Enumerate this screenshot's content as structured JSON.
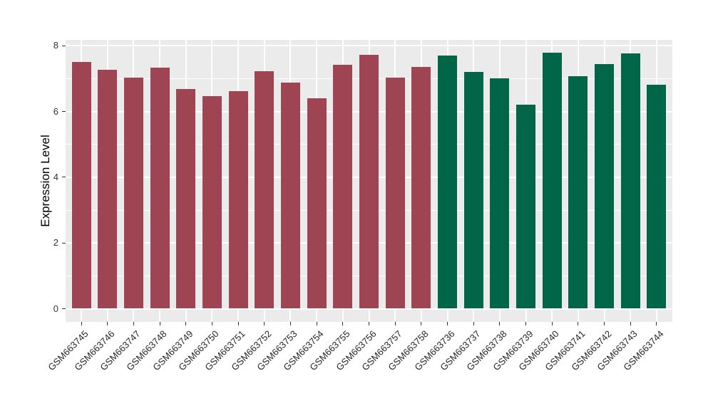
{
  "chart_data": {
    "type": "bar",
    "title": "",
    "xlabel": "",
    "ylabel": "Expression Level",
    "ylim": [
      0,
      8.18
    ],
    "yticks_major": [
      0,
      2,
      4,
      6,
      8
    ],
    "yticks_minor": [
      1,
      3,
      5,
      7
    ],
    "grid": "on",
    "legend": "none",
    "categories": [
      "GSM663745",
      "GSM663746",
      "GSM663747",
      "GSM663748",
      "GSM663749",
      "GSM663750",
      "GSM663751",
      "GSM663752",
      "GSM663753",
      "GSM663754",
      "GSM663755",
      "GSM663756",
      "GSM663757",
      "GSM663758",
      "GSM663736",
      "GSM663737",
      "GSM663738",
      "GSM663739",
      "GSM663740",
      "GSM663741",
      "GSM663742",
      "GSM663743",
      "GSM663744"
    ],
    "values": [
      7.5,
      7.26,
      7.03,
      7.34,
      6.68,
      6.47,
      6.61,
      7.22,
      6.88,
      6.4,
      7.42,
      7.73,
      7.03,
      7.35,
      7.7,
      7.2,
      7.01,
      6.2,
      7.78,
      7.07,
      7.44,
      7.77,
      6.81
    ],
    "groups": [
      "group1",
      "group1",
      "group1",
      "group1",
      "group1",
      "group1",
      "group1",
      "group1",
      "group1",
      "group1",
      "group1",
      "group1",
      "group1",
      "group1",
      "group2",
      "group2",
      "group2",
      "group2",
      "group2",
      "group2",
      "group2",
      "group2",
      "group2"
    ],
    "colors": {
      "group1": "#9E4452",
      "group2": "#006647",
      "panel_bg": "#EBEBEB",
      "grid": "#FFFFFF",
      "axis_text": "#333333",
      "tick_mark": "#333333"
    }
  }
}
